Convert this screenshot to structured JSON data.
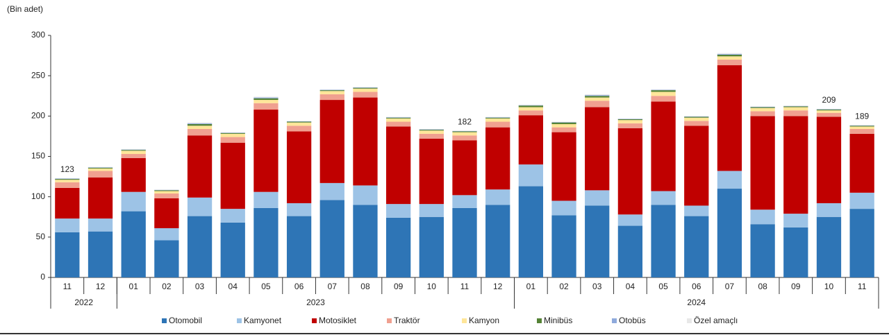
{
  "chart_data": {
    "type": "stacked_bar",
    "y_axis_label": "(Bin adet)",
    "categories": [
      "11",
      "12",
      "01",
      "02",
      "03",
      "04",
      "05",
      "06",
      "07",
      "08",
      "09",
      "10",
      "11",
      "12",
      "01",
      "02",
      "03",
      "04",
      "05",
      "06",
      "07",
      "08",
      "09",
      "10",
      "11"
    ],
    "year_labels": [
      "2022",
      "2023",
      "2024"
    ],
    "ylim": [
      0,
      300
    ],
    "yticks": [
      0,
      50,
      100,
      150,
      200,
      250,
      300
    ],
    "series": [
      {
        "name": "Otomobil",
        "color": "#2e75b6",
        "values": [
          56,
          57,
          82,
          46,
          76,
          68,
          86,
          76,
          96,
          90,
          74,
          75,
          86,
          90,
          113,
          77,
          89,
          64,
          90,
          76,
          110,
          66,
          62,
          75,
          85
        ]
      },
      {
        "name": "Kamyonet",
        "color": "#9dc3e6",
        "values": [
          17,
          16,
          24,
          15,
          23,
          17,
          20,
          16,
          21,
          24,
          17,
          16,
          16,
          19,
          27,
          18,
          19,
          14,
          17,
          13,
          22,
          18,
          17,
          17,
          20
        ]
      },
      {
        "name": "Motosiklet",
        "color": "#c00000",
        "values": [
          38,
          51,
          42,
          37,
          77,
          82,
          102,
          89,
          103,
          109,
          96,
          81,
          68,
          77,
          61,
          85,
          103,
          107,
          111,
          99,
          131,
          116,
          121,
          107,
          73
        ]
      },
      {
        "name": "Traktör",
        "color": "#f0a090",
        "values": [
          7,
          8,
          5,
          6,
          8,
          7,
          8,
          7,
          7,
          7,
          6,
          6,
          6,
          7,
          6,
          6,
          8,
          6,
          7,
          6,
          7,
          6,
          7,
          5,
          6
        ]
      },
      {
        "name": "Kamyon",
        "color": "#ffe699",
        "values": [
          3,
          3,
          4,
          3,
          4,
          4,
          4,
          4,
          4,
          4,
          4,
          4,
          4,
          4,
          4,
          4,
          4,
          4,
          5,
          4,
          4,
          4,
          4,
          3,
          3
        ]
      },
      {
        "name": "Minibüs",
        "color": "#548235",
        "values": [
          1,
          1,
          1,
          1,
          2,
          1,
          2,
          1,
          1,
          1,
          1,
          1,
          1,
          1,
          2,
          2,
          2,
          1,
          2,
          1,
          2,
          1,
          1,
          1,
          1
        ]
      },
      {
        "name": "Otobüs",
        "color": "#8faadc",
        "values": [
          0.5,
          0.5,
          0.5,
          0.5,
          1,
          0.5,
          1,
          0.5,
          0.5,
          0.5,
          0.5,
          0.5,
          0.5,
          0.5,
          0.5,
          0.5,
          1,
          0.5,
          0.5,
          0.5,
          1,
          0.5,
          0.5,
          0.5,
          0.5
        ]
      },
      {
        "name": "Özel amaçlı",
        "color": "#e8e8e8",
        "values": [
          0.5,
          0.5,
          0.5,
          0.5,
          1,
          0.5,
          1,
          0.5,
          0.5,
          0.5,
          0.5,
          0.5,
          0.5,
          0.5,
          0.5,
          0.5,
          1,
          0.5,
          0.5,
          0.5,
          1,
          0.5,
          0.5,
          0.5,
          0.5
        ]
      }
    ],
    "total_labels": [
      123,
      null,
      null,
      null,
      null,
      null,
      null,
      null,
      null,
      null,
      null,
      null,
      182,
      null,
      null,
      null,
      null,
      null,
      null,
      null,
      null,
      null,
      null,
      209,
      189
    ]
  }
}
